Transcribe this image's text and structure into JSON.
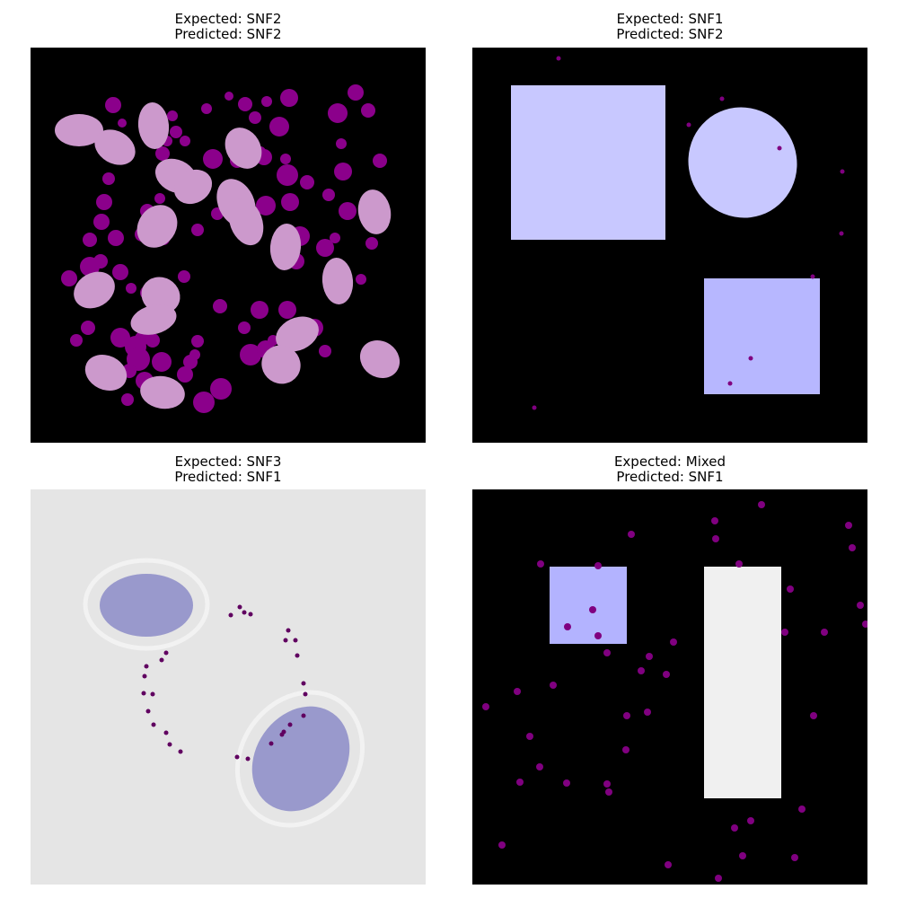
{
  "panels": [
    {
      "expected_label": "Expected: SNF2",
      "predicted_label": "Predicted: SNF2",
      "background": "#000000",
      "dot_color": "#8b008b",
      "particle_color": "#cc99cc",
      "particle_shape": "ellipse"
    },
    {
      "expected_label": "Expected: SNF1",
      "predicted_label": "Predicted: SNF2",
      "background": "#000000",
      "dot_color": "#800080",
      "shape_color": "#c8c8ff"
    },
    {
      "expected_label": "Expected: SNF3",
      "predicted_label": "Predicted: SNF1",
      "background": "#e5e5e5",
      "dot_color": "#600060",
      "shape_color": "#9999cc",
      "shell_color": "#f2f2f2"
    },
    {
      "expected_label": "Expected: Mixed",
      "predicted_label": "Predicted: SNF1",
      "background": "#000000",
      "dot_color": "#800080",
      "square_color": "#b3b3ff",
      "rect_color": "#f0f0f0"
    }
  ]
}
